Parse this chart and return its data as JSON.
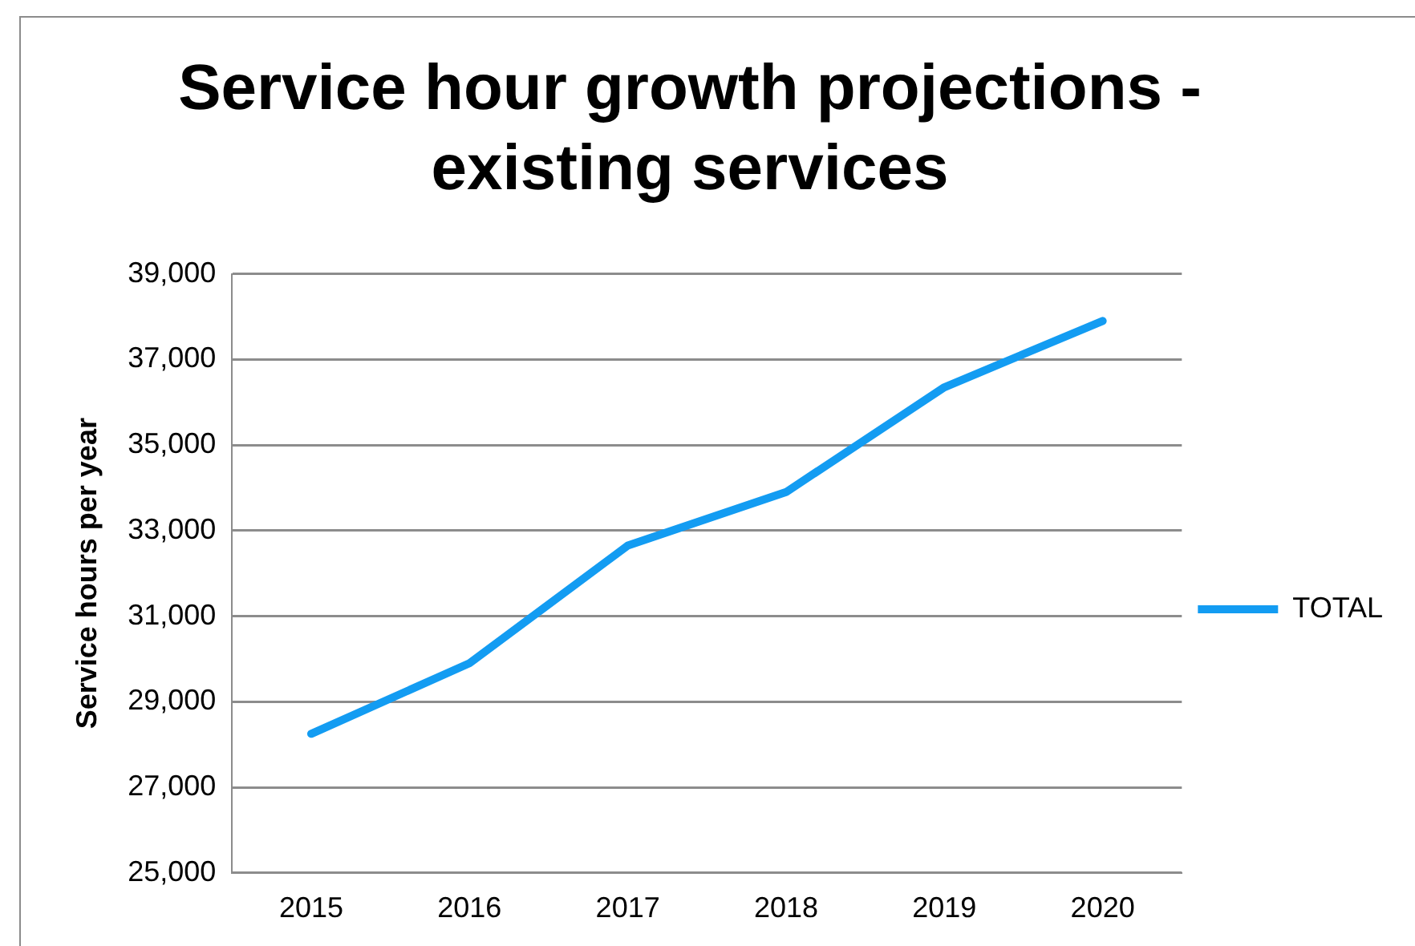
{
  "chart_data": {
    "type": "line",
    "title": "Service hour growth projections - existing services",
    "ylabel": "Service hours per year",
    "categories": [
      "2015",
      "2016",
      "2017",
      "2018",
      "2019",
      "2020"
    ],
    "series": [
      {
        "name": "TOTAL",
        "color": "#139cf2",
        "values": [
          28250,
          29900,
          32650,
          33900,
          36350,
          37900
        ]
      }
    ],
    "ylim": [
      25000,
      39000
    ],
    "yticks": [
      {
        "value": 25000,
        "label": "25,000"
      },
      {
        "value": 27000,
        "label": "27,000"
      },
      {
        "value": 29000,
        "label": "29,000"
      },
      {
        "value": 31000,
        "label": "31,000"
      },
      {
        "value": 33000,
        "label": "33,000"
      },
      {
        "value": 35000,
        "label": "35,000"
      },
      {
        "value": 37000,
        "label": "37,000"
      },
      {
        "value": 39000,
        "label": "39,000"
      }
    ],
    "grid": "y",
    "legend": "right",
    "marker": "none",
    "line_style": "solid"
  }
}
